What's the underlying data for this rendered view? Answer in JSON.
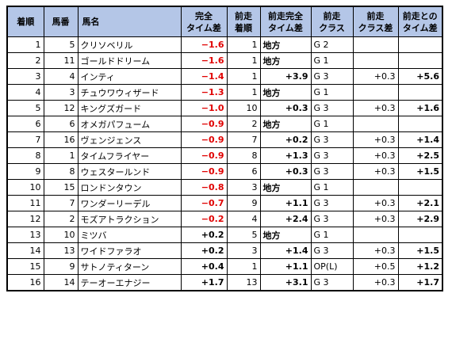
{
  "headers": [
    {
      "l1": "着順",
      "l2": ""
    },
    {
      "l1": "馬番",
      "l2": ""
    },
    {
      "l1": "馬名",
      "l2": ""
    },
    {
      "l1": "完全",
      "l2": "タイム差"
    },
    {
      "l1": "前走",
      "l2": "着順"
    },
    {
      "l1": "前走完全",
      "l2": "タイム差"
    },
    {
      "l1": "前走",
      "l2": "クラス"
    },
    {
      "l1": "前走",
      "l2": "クラス差"
    },
    {
      "l1": "前走との",
      "l2": "タイム差"
    }
  ],
  "rows": [
    {
      "rank": "1",
      "num": "5",
      "name": "クリソベリル",
      "diff": "−1.6",
      "prev_rank": "1",
      "prev_diff": "地方",
      "prev_class": "G 2",
      "class_diff": "",
      "time_diff": ""
    },
    {
      "rank": "2",
      "num": "11",
      "name": "ゴールドドリーム",
      "diff": "−1.6",
      "prev_rank": "1",
      "prev_diff": "地方",
      "prev_class": "G 1",
      "class_diff": "",
      "time_diff": ""
    },
    {
      "rank": "3",
      "num": "4",
      "name": "インティ",
      "diff": "−1.4",
      "prev_rank": "1",
      "prev_diff": "+3.9",
      "prev_class": "G 3",
      "class_diff": "+0.3",
      "time_diff": "+5.6"
    },
    {
      "rank": "4",
      "num": "3",
      "name": "チュウワウィザード",
      "diff": "−1.3",
      "prev_rank": "1",
      "prev_diff": "地方",
      "prev_class": "G 1",
      "class_diff": "",
      "time_diff": ""
    },
    {
      "rank": "5",
      "num": "12",
      "name": "キングズガード",
      "diff": "−1.0",
      "prev_rank": "10",
      "prev_diff": "+0.3",
      "prev_class": "G 3",
      "class_diff": "+0.3",
      "time_diff": "+1.6"
    },
    {
      "rank": "6",
      "num": "6",
      "name": "オメガパフューム",
      "diff": "−0.9",
      "prev_rank": "2",
      "prev_diff": "地方",
      "prev_class": "G 1",
      "class_diff": "",
      "time_diff": ""
    },
    {
      "rank": "7",
      "num": "16",
      "name": "ヴェンジェンス",
      "diff": "−0.9",
      "prev_rank": "7",
      "prev_diff": "+0.2",
      "prev_class": "G 3",
      "class_diff": "+0.3",
      "time_diff": "+1.4"
    },
    {
      "rank": "8",
      "num": "1",
      "name": "タイムフライヤー",
      "diff": "−0.9",
      "prev_rank": "8",
      "prev_diff": "+1.3",
      "prev_class": "G 3",
      "class_diff": "+0.3",
      "time_diff": "+2.5"
    },
    {
      "rank": "9",
      "num": "8",
      "name": "ウェスタールンド",
      "diff": "−0.9",
      "prev_rank": "6",
      "prev_diff": "+0.3",
      "prev_class": "G 3",
      "class_diff": "+0.3",
      "time_diff": "+1.5"
    },
    {
      "rank": "10",
      "num": "15",
      "name": "ロンドンタウン",
      "diff": "−0.8",
      "prev_rank": "3",
      "prev_diff": "地方",
      "prev_class": "G 1",
      "class_diff": "",
      "time_diff": ""
    },
    {
      "rank": "11",
      "num": "7",
      "name": "ワンダーリーデル",
      "diff": "−0.7",
      "prev_rank": "9",
      "prev_diff": "+1.1",
      "prev_class": "G 3",
      "class_diff": "+0.3",
      "time_diff": "+2.1"
    },
    {
      "rank": "12",
      "num": "2",
      "name": "モズアトラクション",
      "diff": "−0.2",
      "prev_rank": "4",
      "prev_diff": "+2.4",
      "prev_class": "G 3",
      "class_diff": "+0.3",
      "time_diff": "+2.9"
    },
    {
      "rank": "13",
      "num": "10",
      "name": "ミツバ",
      "diff": "+0.2",
      "prev_rank": "5",
      "prev_diff": "地方",
      "prev_class": "G 1",
      "class_diff": "",
      "time_diff": ""
    },
    {
      "rank": "14",
      "num": "13",
      "name": "ワイドファラオ",
      "diff": "+0.2",
      "prev_rank": "3",
      "prev_diff": "+1.4",
      "prev_class": "G 3",
      "class_diff": "+0.3",
      "time_diff": "+1.5"
    },
    {
      "rank": "15",
      "num": "9",
      "name": "サトノティターン",
      "diff": "+0.4",
      "prev_rank": "1",
      "prev_diff": "+1.1",
      "prev_class": "OP(L)",
      "class_diff": "+0.5",
      "time_diff": "+1.2"
    },
    {
      "rank": "16",
      "num": "14",
      "name": "テーオーエナジー",
      "diff": "+1.7",
      "prev_rank": "13",
      "prev_diff": "+3.1",
      "prev_class": "G 3",
      "class_diff": "+0.3",
      "time_diff": "+1.7"
    }
  ],
  "colors": {
    "header_bg": "#b4c6e7",
    "negative": "#e00000",
    "positive": "#000000"
  }
}
